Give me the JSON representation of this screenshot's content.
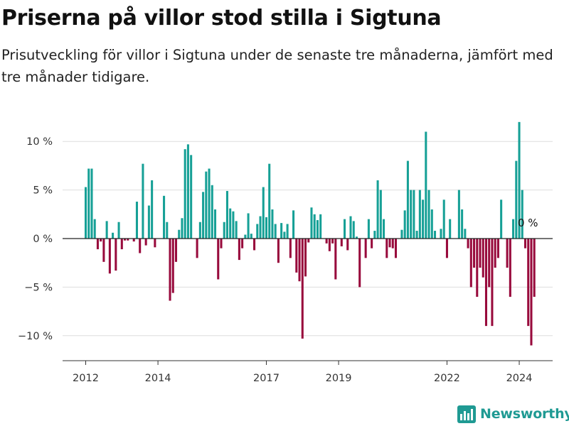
{
  "header": {
    "title": "Priserna på villor stod stilla i Sigtuna",
    "subtitle": "Prisutveckling för villor i Sigtuna under de senaste tre månaderna, jämfört med tre månader tidigare."
  },
  "brand": {
    "logo_text": "Newsworthy"
  },
  "colors": {
    "positive": "#16a096",
    "negative": "#980a3c",
    "grid": "#dddddd",
    "zero_line": "#222222"
  },
  "chart_data": {
    "type": "bar",
    "x_start": "2012-01",
    "x_end": "2024-03",
    "x_ticks": [
      {
        "label": "2012",
        "date": "2012-01"
      },
      {
        "label": "2014",
        "date": "2014-01"
      },
      {
        "label": "2017",
        "date": "2017-01"
      },
      {
        "label": "2019",
        "date": "2019-01"
      },
      {
        "label": "2022",
        "date": "2022-01"
      },
      {
        "label": "2024",
        "date": "2024-01"
      }
    ],
    "y_ticks": [
      {
        "value": 10,
        "label": "10 %"
      },
      {
        "value": 5,
        "label": "5 %"
      },
      {
        "value": 0,
        "label": "0 %"
      },
      {
        "value": -5,
        "label": "−5 %"
      },
      {
        "value": -10,
        "label": "−10 %"
      }
    ],
    "ylim": [
      -12.5,
      11
    ],
    "grid": true,
    "last_value_label": "0 %",
    "values": [
      5.3,
      7.2,
      7.2,
      2.0,
      -1.1,
      -0.3,
      -2.4,
      1.8,
      -3.6,
      0.6,
      -3.3,
      1.7,
      -1.1,
      -0.2,
      -0.2,
      0,
      -0.3,
      3.8,
      -1.5,
      7.7,
      -0.7,
      3.4,
      6.0,
      -0.9,
      0,
      0,
      4.4,
      1.7,
      -6.4,
      -5.6,
      -2.4,
      0.9,
      2.1,
      9.2,
      9.7,
      8.6,
      0,
      -2.0,
      1.7,
      4.8,
      6.9,
      7.2,
      5.5,
      3.0,
      -4.2,
      -1.0,
      1.7,
      4.9,
      3.1,
      2.8,
      1.8,
      -2.2,
      -1.0,
      0.4,
      2.6,
      0.5,
      -1.2,
      1.5,
      2.3,
      5.3,
      2.2,
      7.7,
      3.0,
      1.5,
      -2.5,
      1.6,
      0.7,
      1.5,
      -2.0,
      2.9,
      -3.5,
      -4.4,
      -10.3,
      -3.9,
      -0.4,
      3.2,
      2.5,
      1.9,
      2.5,
      0,
      -0.5,
      -1.3,
      -0.5,
      -4.2,
      0,
      -0.8,
      2.0,
      -1.2,
      2.3,
      1.8,
      0.2,
      -5.0,
      0,
      -2.0,
      2.0,
      -1.0,
      0.8,
      6.0,
      5.0,
      2.0,
      -2.0,
      -0.9,
      -1.0,
      -2.0,
      0,
      0.9,
      2.9,
      8.0,
      5.0,
      5.0,
      0.8,
      5.0,
      4.0,
      11.0,
      5.0,
      3.0,
      0.8,
      0,
      1.0,
      4.0,
      -2.0,
      2.0,
      0,
      0,
      5.0,
      3.0,
      1.0,
      -1.0,
      -5.0,
      -3.0,
      -6.0,
      -3.0,
      -4.0,
      -9.0,
      -5.0,
      -9.0,
      -3.0,
      -2.0,
      4.0,
      0,
      -3.0,
      -6.0,
      2.0,
      8.0,
      12.0,
      5.0,
      -1.0,
      -9.0,
      -11.0,
      -6.0,
      0
    ]
  }
}
